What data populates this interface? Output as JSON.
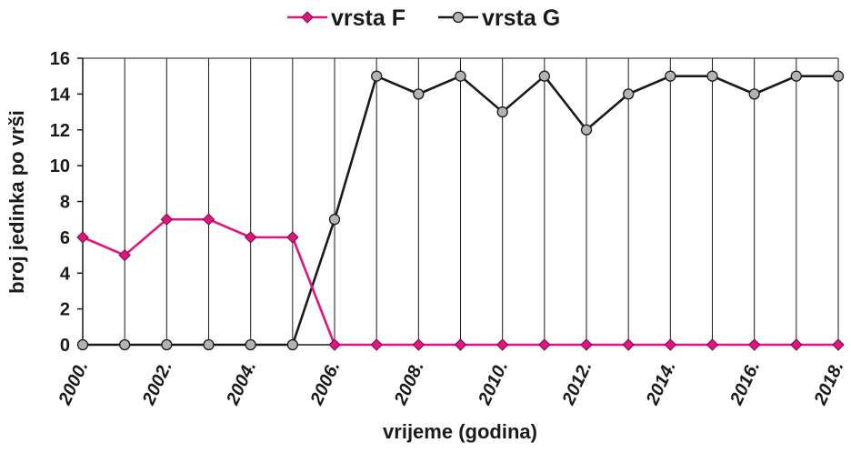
{
  "chart_data": {
    "type": "line",
    "xlabel": "vrijeme (godina)",
    "ylabel": "broj jedinka po vrši",
    "ylim": [
      0,
      16
    ],
    "yticks": [
      0,
      2,
      4,
      6,
      8,
      10,
      12,
      14,
      16
    ],
    "x": [
      2000,
      2001,
      2002,
      2003,
      2004,
      2005,
      2006,
      2007,
      2008,
      2009,
      2010,
      2011,
      2012,
      2013,
      2014,
      2015,
      2016,
      2017,
      2018
    ],
    "xtick_labels": [
      "2000.",
      "2002.",
      "2004.",
      "2006.",
      "2008.",
      "2010.",
      "2012.",
      "2014.",
      "2016.",
      "2018."
    ],
    "xtick_values": [
      2000,
      2002,
      2004,
      2006,
      2008,
      2010,
      2012,
      2014,
      2016,
      2018
    ],
    "grid": "vertical",
    "legend": "top",
    "series": [
      {
        "name": "vrsta F",
        "color": "#e0157f",
        "marker": "diamond",
        "values": [
          6,
          5,
          7,
          7,
          6,
          6,
          0,
          0,
          0,
          0,
          0,
          0,
          0,
          0,
          0,
          0,
          0,
          0,
          0
        ]
      },
      {
        "name": "vrsta G",
        "color": "#1a1a1a",
        "marker": "circle",
        "values": [
          0,
          0,
          0,
          0,
          0,
          0,
          7,
          15,
          14,
          15,
          13,
          15,
          12,
          14,
          15,
          15,
          14,
          15,
          15
        ]
      }
    ]
  }
}
